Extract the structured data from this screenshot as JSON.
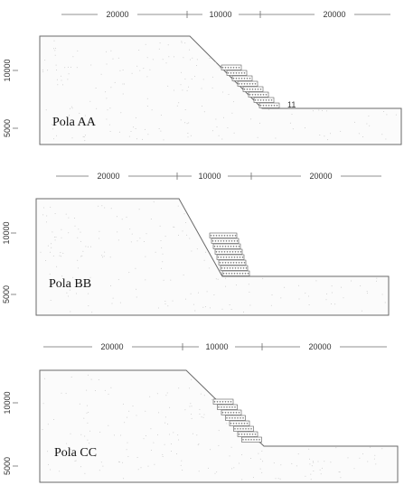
{
  "panels": [
    {
      "label": "Pola AA",
      "dimensions": [
        "20000",
        "10000",
        "20000"
      ],
      "elevations": [
        "10000",
        "5000"
      ],
      "reinforcement_rows": 8,
      "small_annotation": "11"
    },
    {
      "label": "Pola BB",
      "dimensions": [
        "20000",
        "10000",
        "20000"
      ],
      "elevations": [
        "10000",
        "5000"
      ],
      "reinforcement_rows": 8,
      "small_annotation": ""
    },
    {
      "label": "Pola CC",
      "dimensions": [
        "20000",
        "10000",
        "20000"
      ],
      "elevations": [
        "10000",
        "5000"
      ],
      "reinforcement_rows": 8,
      "small_annotation": ""
    }
  ],
  "colors": {
    "outline": "#6a6a6a",
    "soil_fill": "#fbfbfb",
    "speckle": "#c7c7c7"
  }
}
